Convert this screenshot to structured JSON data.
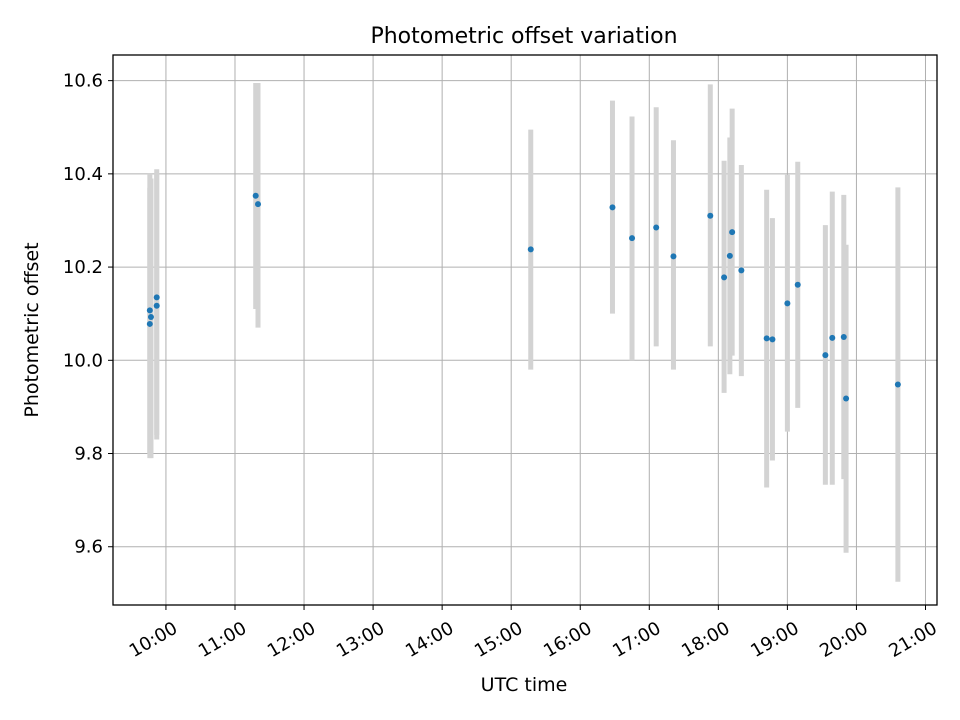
{
  "chart_data": {
    "type": "scatter",
    "title": "Photometric offset variation",
    "xlabel": "UTC time",
    "ylabel": "Photometric offset",
    "xlim": [
      "09:14",
      "21:10"
    ],
    "ylim": [
      9.475,
      10.655
    ],
    "xticks": [
      "10:00",
      "11:00",
      "12:00",
      "13:00",
      "14:00",
      "15:00",
      "16:00",
      "17:00",
      "18:00",
      "19:00",
      "20:00",
      "21:00"
    ],
    "yticks": [
      9.6,
      9.8,
      10.0,
      10.2,
      10.4,
      10.6
    ],
    "ytick_labels": [
      "9.6",
      "9.8",
      "10.0",
      "10.2",
      "10.4",
      "10.6"
    ],
    "grid": true,
    "marker_color": "#1f77b4",
    "errorbar_color": "#d3d3d3",
    "points": [
      {
        "x": "09:46",
        "y": 10.078,
        "ylow": 9.79,
        "yhigh": 10.37
      },
      {
        "x": "09:46",
        "y": 10.107,
        "ylow": 9.8,
        "yhigh": 10.4
      },
      {
        "x": "09:47",
        "y": 10.093,
        "ylow": 9.79,
        "yhigh": 10.39
      },
      {
        "x": "09:52",
        "y": 10.135,
        "ylow": 9.84,
        "yhigh": 10.41
      },
      {
        "x": "09:52",
        "y": 10.117,
        "ylow": 9.83,
        "yhigh": 10.4
      },
      {
        "x": "11:18",
        "y": 10.353,
        "ylow": 10.11,
        "yhigh": 10.595
      },
      {
        "x": "11:20",
        "y": 10.335,
        "ylow": 10.07,
        "yhigh": 10.595
      },
      {
        "x": "15:17",
        "y": 10.238,
        "ylow": 9.98,
        "yhigh": 10.495
      },
      {
        "x": "16:28",
        "y": 10.328,
        "ylow": 10.1,
        "yhigh": 10.557
      },
      {
        "x": "16:45",
        "y": 10.262,
        "ylow": 10.0,
        "yhigh": 10.523
      },
      {
        "x": "17:06",
        "y": 10.285,
        "ylow": 10.03,
        "yhigh": 10.543
      },
      {
        "x": "17:21",
        "y": 10.223,
        "ylow": 9.98,
        "yhigh": 10.472
      },
      {
        "x": "17:53",
        "y": 10.31,
        "ylow": 10.03,
        "yhigh": 10.592
      },
      {
        "x": "18:05",
        "y": 10.178,
        "ylow": 9.93,
        "yhigh": 10.428
      },
      {
        "x": "18:10",
        "y": 10.224,
        "ylow": 9.97,
        "yhigh": 10.478
      },
      {
        "x": "18:12",
        "y": 10.275,
        "ylow": 10.01,
        "yhigh": 10.54
      },
      {
        "x": "18:20",
        "y": 10.193,
        "ylow": 9.966,
        "yhigh": 10.419
      },
      {
        "x": "18:42",
        "y": 10.047,
        "ylow": 9.727,
        "yhigh": 10.366
      },
      {
        "x": "18:47",
        "y": 10.045,
        "ylow": 9.785,
        "yhigh": 10.305
      },
      {
        "x": "19:00",
        "y": 10.122,
        "ylow": 9.847,
        "yhigh": 10.398
      },
      {
        "x": "19:09",
        "y": 10.162,
        "ylow": 9.898,
        "yhigh": 10.426
      },
      {
        "x": "19:33",
        "y": 10.011,
        "ylow": 9.733,
        "yhigh": 10.29
      },
      {
        "x": "19:39",
        "y": 10.048,
        "ylow": 9.733,
        "yhigh": 10.362
      },
      {
        "x": "19:49",
        "y": 10.05,
        "ylow": 9.745,
        "yhigh": 10.355
      },
      {
        "x": "19:51",
        "y": 9.918,
        "ylow": 9.587,
        "yhigh": 10.248
      },
      {
        "x": "20:36",
        "y": 9.948,
        "ylow": 9.525,
        "yhigh": 10.371
      }
    ]
  }
}
